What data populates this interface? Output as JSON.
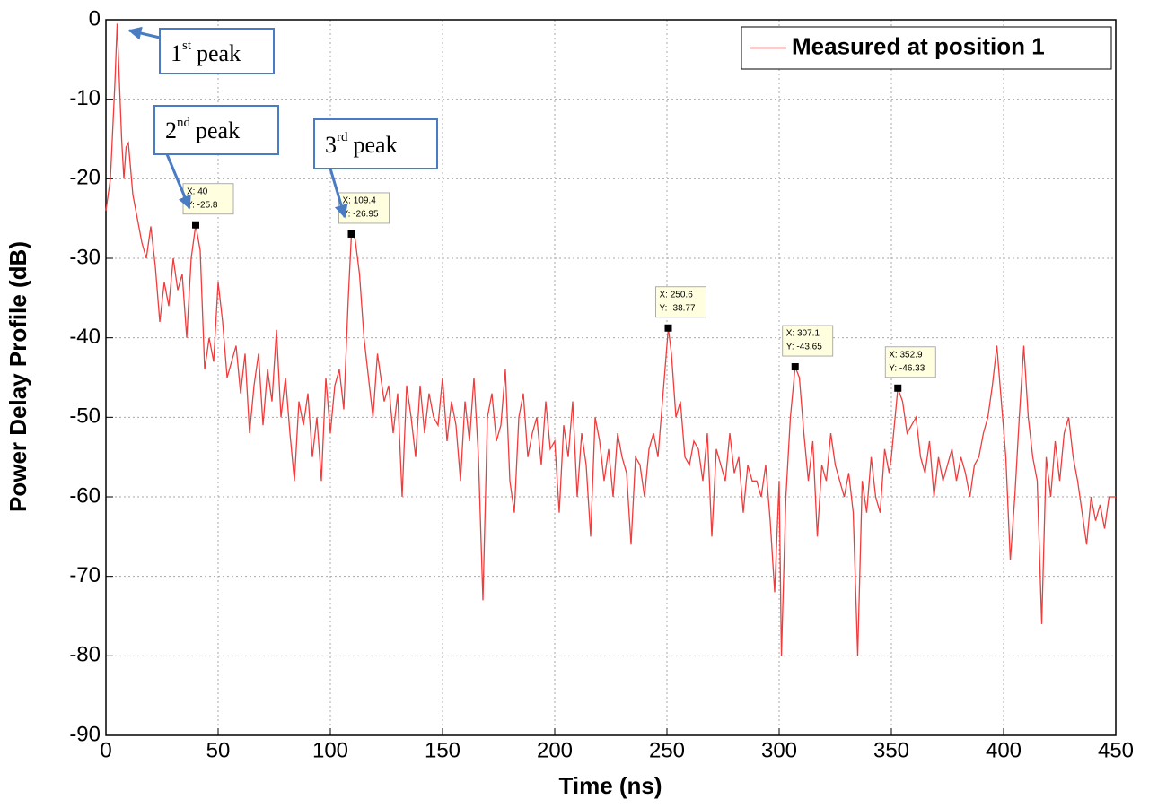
{
  "chart_data": {
    "type": "line",
    "xlabel": "Time (ns)",
    "ylabel": "Power Delay Profile (dB)",
    "xlim": [
      0,
      450
    ],
    "ylim": [
      -90,
      0
    ],
    "xticks": [
      0,
      50,
      100,
      150,
      200,
      250,
      300,
      350,
      400,
      450
    ],
    "yticks": [
      0,
      -10,
      -20,
      -30,
      -40,
      -50,
      -60,
      -70,
      -80,
      -90
    ],
    "grid": true,
    "legend": "upper right",
    "x": [
      0,
      2,
      4,
      5,
      7,
      8,
      9,
      10,
      12,
      14,
      16,
      18,
      20,
      22,
      24,
      26,
      28,
      30,
      32,
      34,
      36,
      38,
      40,
      42,
      44,
      46,
      48,
      50,
      52,
      54,
      56,
      58,
      60,
      62,
      64,
      66,
      68,
      70,
      72,
      74,
      76,
      78,
      80,
      82,
      84,
      86,
      88,
      90,
      92,
      94,
      96,
      98,
      100,
      102,
      104,
      106,
      108,
      109.4,
      111,
      113,
      115,
      117,
      119,
      121,
      124,
      126,
      128,
      130,
      132,
      134,
      136,
      138,
      140,
      142,
      144,
      146,
      148,
      150,
      152,
      154,
      156,
      158,
      160,
      162,
      164,
      166,
      168,
      170,
      172,
      174,
      176,
      178,
      180,
      182,
      184,
      186,
      188,
      190,
      192,
      194,
      196,
      198,
      200,
      202,
      204,
      206,
      208,
      210,
      212,
      214,
      216,
      218,
      220,
      222,
      224,
      226,
      228,
      230,
      232,
      234,
      236,
      238,
      240,
      242,
      244,
      246,
      248,
      250.6,
      252,
      254,
      256,
      258,
      260,
      262,
      264,
      266,
      268,
      270,
      272,
      274,
      276,
      278,
      280,
      282,
      284,
      286,
      288,
      290,
      292,
      294,
      296,
      298,
      300,
      301,
      303,
      305,
      307.1,
      309,
      311,
      313,
      315,
      317,
      319,
      321,
      323,
      325,
      327,
      329,
      331,
      333,
      335,
      337,
      339,
      341,
      343,
      345,
      347,
      349,
      350,
      352.9,
      355,
      357,
      359,
      361,
      363,
      365,
      367,
      369,
      371,
      373,
      375,
      377,
      379,
      381,
      383,
      385,
      387,
      389,
      391,
      393,
      395,
      397,
      399,
      401,
      403,
      405,
      407,
      409,
      411,
      413,
      415,
      417,
      419,
      421,
      423,
      425,
      427,
      429,
      431,
      433,
      435,
      437,
      439,
      441,
      443,
      445,
      447,
      450
    ],
    "series": [
      {
        "name": "Measured at position 1",
        "color": "#f03c3c",
        "values": [
          -24,
          -20,
          -8,
          -0.5,
          -15,
          -20,
          -16,
          -15.5,
          -22,
          -25,
          -28,
          -30,
          -26,
          -31,
          -38,
          -33,
          -36,
          -30,
          -34,
          -32,
          -40,
          -30,
          -25.8,
          -29,
          -44,
          -40,
          -43,
          -33,
          -38,
          -45,
          -43,
          -41,
          -47,
          -42,
          -52,
          -46,
          -42,
          -51,
          -44,
          -48,
          -39,
          -50,
          -45,
          -52,
          -58,
          -48,
          -51,
          -47,
          -55,
          -50,
          -58,
          -45,
          -52,
          -46,
          -44,
          -49,
          -35,
          -26.95,
          -27.5,
          -32,
          -40,
          -45,
          -50,
          -42,
          -48,
          -46,
          -52,
          -47,
          -60,
          -46,
          -50,
          -55,
          -46,
          -52,
          -47,
          -50,
          -51,
          -45,
          -53,
          -48,
          -51,
          -58,
          -48,
          -53,
          -45,
          -55,
          -73,
          -50,
          -47,
          -53,
          -51,
          -44,
          -58,
          -62,
          -50,
          -47,
          -55,
          -52,
          -50,
          -56,
          -48,
          -54,
          -53,
          -62,
          -51,
          -55,
          -48,
          -60,
          -52,
          -56,
          -65,
          -50,
          -53,
          -58,
          -54,
          -60,
          -52,
          -55,
          -57,
          -66,
          -55,
          -56,
          -60,
          -54,
          -52,
          -55,
          -48,
          -38.77,
          -42,
          -50,
          -48,
          -55,
          -56,
          -53,
          -54,
          -58,
          -52,
          -65,
          -54,
          -56,
          -58,
          -52,
          -57,
          -55,
          -62,
          -56,
          -58,
          -58,
          -60,
          -56,
          -63,
          -72,
          -58,
          -80,
          -60,
          -50,
          -43.65,
          -45,
          -52,
          -58,
          -53,
          -65,
          -56,
          -58,
          -52,
          -56,
          -58,
          -60,
          -57,
          -62,
          -80,
          -58,
          -62,
          -55,
          -60,
          -62,
          -54,
          -57,
          -55,
          -46.33,
          -48,
          -52,
          -51,
          -50,
          -55,
          -57,
          -53,
          -60,
          -55,
          -58,
          -56,
          -54,
          -58,
          -55,
          -57,
          -60,
          -56,
          -55,
          -52,
          -50,
          -46,
          -41,
          -48,
          -55,
          -68,
          -60,
          -50,
          -41,
          -50,
          -55,
          -58,
          -76,
          -55,
          -60,
          -53,
          -58,
          -52,
          -50,
          -55,
          -58,
          -62,
          -66,
          -60,
          -63,
          -61,
          -64,
          -60,
          -60
        ]
      }
    ],
    "datatips": [
      {
        "x": 40,
        "y": -25.8,
        "x_label": "X: 40",
        "y_label": "Y: -25.8"
      },
      {
        "x": 109.4,
        "y": -26.95,
        "x_label": "X: 109.4",
        "y_label": "Y: -26.95"
      },
      {
        "x": 250.6,
        "y": -38.77,
        "x_label": "X: 250.6",
        "y_label": "Y: -38.77"
      },
      {
        "x": 307.1,
        "y": -43.65,
        "x_label": "X: 307.1",
        "y_label": "Y: -43.65"
      },
      {
        "x": 352.9,
        "y": -46.33,
        "x_label": "X: 352.9",
        "y_label": "Y: -46.33"
      }
    ],
    "callouts": [
      {
        "number": "1",
        "suffix": "st",
        "word": "peak"
      },
      {
        "number": "2",
        "suffix": "nd",
        "word": "peak"
      },
      {
        "number": "3",
        "suffix": "rd",
        "word": "peak"
      }
    ]
  }
}
